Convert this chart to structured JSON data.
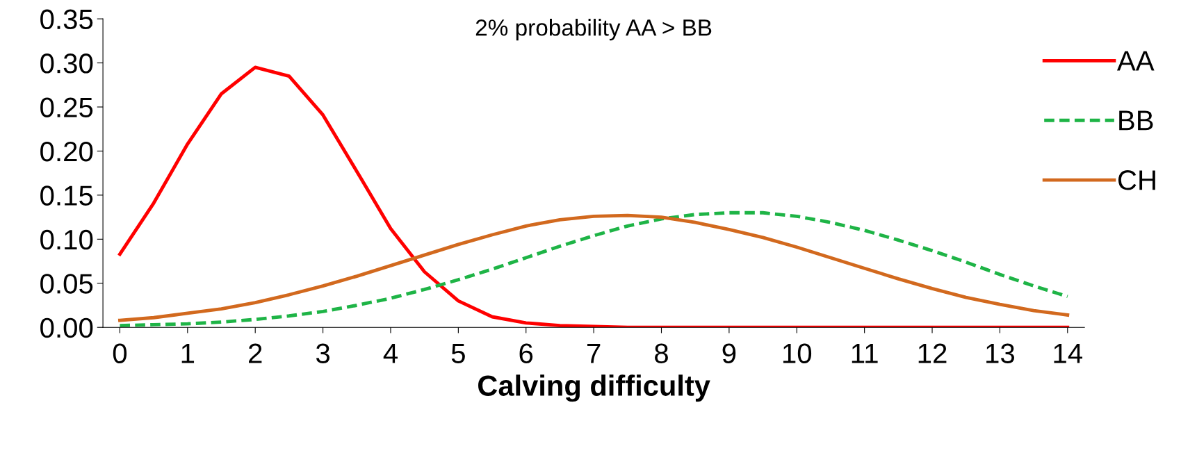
{
  "chart_data": {
    "type": "line",
    "title": "2% probability AA > BB",
    "xlabel": "Calving difficulty",
    "x": [
      0,
      0.5,
      1,
      1.5,
      2,
      2.5,
      3,
      3.5,
      4,
      4.5,
      5,
      5.5,
      6,
      6.5,
      7,
      7.5,
      8,
      8.5,
      9,
      9.5,
      10,
      10.5,
      11,
      11.5,
      12,
      12.5,
      13,
      13.5,
      14
    ],
    "series": [
      {
        "name": "AA",
        "color": "#ff0000",
        "line_style": "solid",
        "values": [
          0.083,
          0.141,
          0.208,
          0.265,
          0.295,
          0.285,
          0.241,
          0.177,
          0.112,
          0.063,
          0.03,
          0.012,
          0.005,
          0.002,
          0.001,
          0,
          0,
          0,
          0,
          0,
          0,
          0,
          0,
          0,
          0,
          0,
          0,
          0,
          0
        ]
      },
      {
        "name": "BB",
        "color": "#1eb446",
        "line_style": "dashed",
        "values": [
          0.002,
          0.003,
          0.004,
          0.006,
          0.009,
          0.013,
          0.018,
          0.025,
          0.033,
          0.043,
          0.054,
          0.066,
          0.079,
          0.092,
          0.104,
          0.115,
          0.123,
          0.128,
          0.13,
          0.13,
          0.126,
          0.119,
          0.11,
          0.099,
          0.087,
          0.074,
          0.06,
          0.047,
          0.035
        ]
      },
      {
        "name": "CH",
        "color": "#d2691e",
        "line_style": "solid",
        "values": [
          0.008,
          0.011,
          0.016,
          0.021,
          0.028,
          0.037,
          0.047,
          0.058,
          0.07,
          0.082,
          0.094,
          0.105,
          0.115,
          0.122,
          0.126,
          0.127,
          0.125,
          0.119,
          0.111,
          0.102,
          0.091,
          0.079,
          0.067,
          0.055,
          0.044,
          0.034,
          0.026,
          0.019,
          0.014
        ]
      }
    ],
    "xlim": [
      -0.25,
      14.25
    ],
    "xticks": [
      0,
      1,
      2,
      3,
      4,
      5,
      6,
      7,
      8,
      9,
      10,
      11,
      12,
      13,
      14
    ],
    "ylim": [
      0,
      0.35
    ],
    "yticks": [
      {
        "value": 0,
        "label": "0.00"
      },
      {
        "value": 0.05,
        "label": "0.05"
      },
      {
        "value": 0.1,
        "label": "0.10"
      },
      {
        "value": 0.15,
        "label": "0.15"
      },
      {
        "value": 0.2,
        "label": "0.20"
      },
      {
        "value": 0.25,
        "label": "0.25"
      },
      {
        "value": 0.3,
        "label": "0.30"
      },
      {
        "value": 0.35,
        "label": "0.35"
      }
    ],
    "grid": false,
    "legend": "top right",
    "marker": "none"
  }
}
